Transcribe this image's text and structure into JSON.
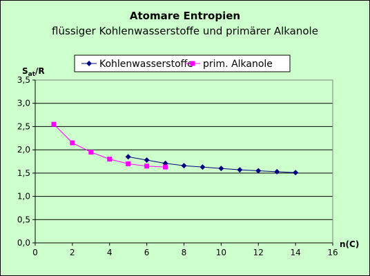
{
  "chart_data": {
    "type": "line",
    "title": "Atomare Entropien",
    "subtitle": "flüssiger Kohlenwasserstoffe und primärer Alkanole",
    "ylabel_main": "S",
    "ylabel_sub": "at",
    "ylabel_tail": "/R",
    "xlabel": "n(C)",
    "xlim": [
      0,
      16
    ],
    "ylim": [
      0.0,
      3.5
    ],
    "x_ticks": [
      "0",
      "2",
      "4",
      "6",
      "8",
      "10",
      "12",
      "14",
      "16"
    ],
    "y_ticks": [
      "0,0",
      "0,5",
      "1,0",
      "1,5",
      "2,0",
      "2,5",
      "3,0",
      "3,5"
    ],
    "grid": "horizontal",
    "legend_position": "top-center",
    "series": [
      {
        "name": "Kohlenwasserstoffe",
        "color": "#000080",
        "marker": "diamond",
        "points": [
          [
            5,
            1.85
          ],
          [
            6,
            1.78
          ],
          [
            7,
            1.71
          ],
          [
            8,
            1.66
          ],
          [
            9,
            1.63
          ],
          [
            10,
            1.6
          ],
          [
            11,
            1.57
          ],
          [
            12,
            1.55
          ],
          [
            13,
            1.53
          ],
          [
            14,
            1.51
          ]
        ]
      },
      {
        "name": "prim. Alkanole",
        "color": "#ff00ff",
        "marker": "square",
        "points": [
          [
            1,
            2.55
          ],
          [
            2,
            2.15
          ],
          [
            3,
            1.95
          ],
          [
            4,
            1.8
          ],
          [
            5,
            1.7
          ],
          [
            6,
            1.65
          ],
          [
            7,
            1.63
          ]
        ]
      }
    ]
  }
}
